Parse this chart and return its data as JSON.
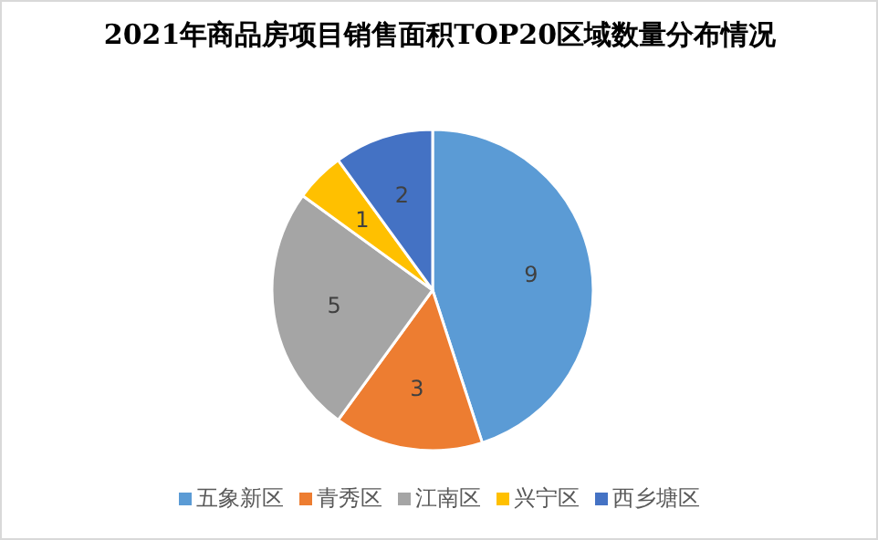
{
  "chart_data": {
    "type": "pie",
    "title": "2021年商品房项目销售面积TOP20区域数量分布情况",
    "categories": [
      "五象新区",
      "青秀区",
      "江南区",
      "兴宁区",
      "西乡塘区"
    ],
    "values": [
      9,
      3,
      5,
      1,
      2
    ],
    "colors": [
      "#5b9bd5",
      "#ed7d31",
      "#a5a5a5",
      "#ffc000",
      "#4472c4"
    ],
    "data_labels": true,
    "legend": "bottom"
  }
}
